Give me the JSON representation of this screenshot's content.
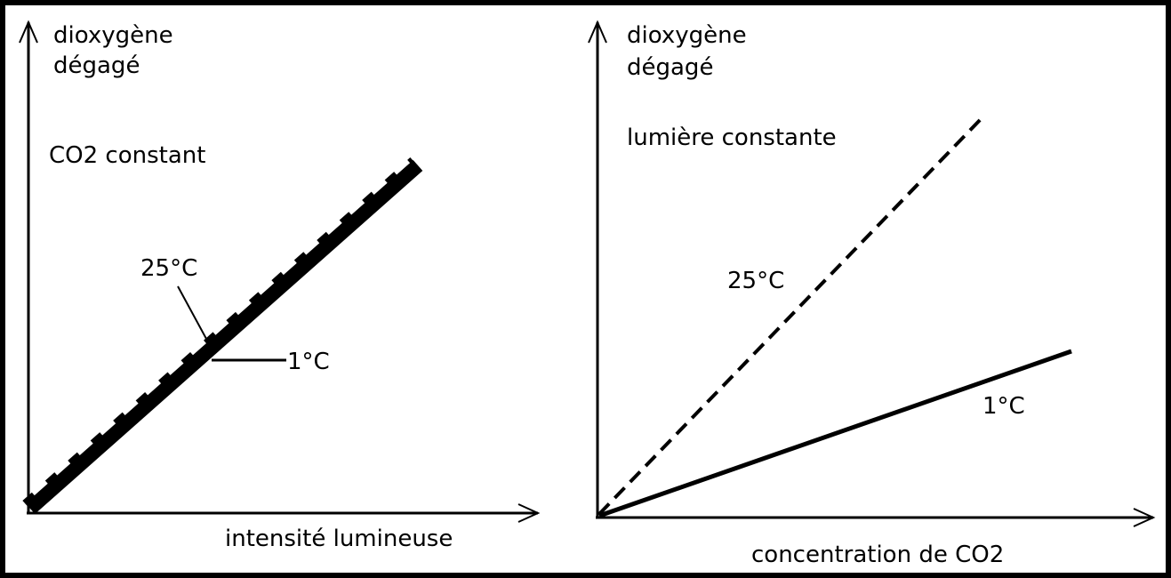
{
  "panels": [
    {
      "y_axis_label": [
        "dioxygène",
        "dégagé"
      ],
      "condition": "CO2 constant",
      "curve_labels": [
        "25°C",
        "1°C"
      ],
      "x_axis_label": "intensité lumineuse"
    },
    {
      "y_axis_label": [
        "dioxygène",
        "dégagé"
      ],
      "condition": "lumière constante",
      "curve_labels": [
        "25°C",
        "1°C"
      ],
      "x_axis_label": "concentration de CO2"
    }
  ]
}
